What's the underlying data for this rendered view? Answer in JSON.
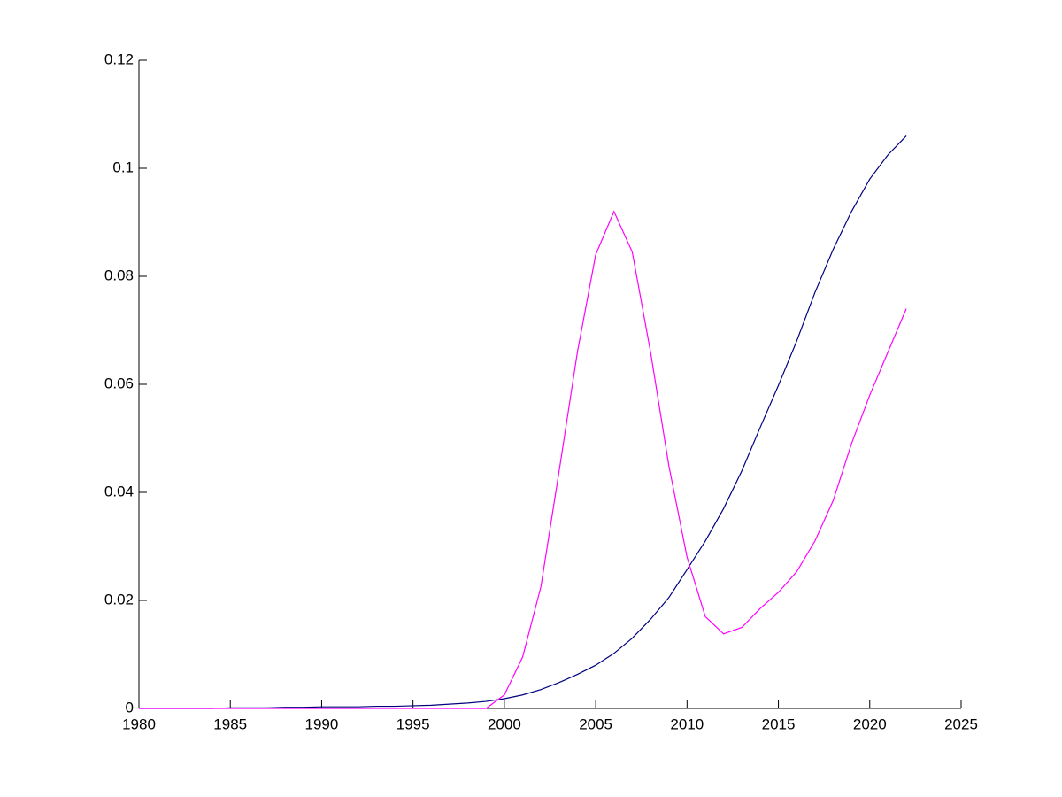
{
  "chart_data": {
    "type": "line",
    "x": [
      1980,
      1981,
      1982,
      1983,
      1984,
      1985,
      1986,
      1987,
      1988,
      1989,
      1990,
      1991,
      1992,
      1993,
      1994,
      1995,
      1996,
      1997,
      1998,
      1999,
      2000,
      2001,
      2002,
      2003,
      2004,
      2005,
      2006,
      2007,
      2008,
      2009,
      2010,
      2011,
      2012,
      2013,
      2014,
      2015,
      2016,
      2017,
      2018,
      2019,
      2020,
      2021,
      2022
    ],
    "series": [
      {
        "color": "#00007f",
        "values": [
          0,
          0,
          0,
          0,
          0,
          0.0001,
          0.0001,
          0.0001,
          0.0002,
          0.0002,
          0.0003,
          0.0003,
          0.0003,
          0.0004,
          0.0004,
          0.0005,
          0.0006,
          0.0008,
          0.001,
          0.0013,
          0.0018,
          0.0025,
          0.0035,
          0.0048,
          0.0063,
          0.008,
          0.0102,
          0.013,
          0.0165,
          0.0205,
          0.0257,
          0.031,
          0.037,
          0.044,
          0.052,
          0.0598,
          0.068,
          0.077,
          0.085,
          0.092,
          0.098,
          0.1025,
          0.106
        ]
      },
      {
        "color": "#ff00ff",
        "values": [
          0,
          0,
          0,
          0,
          0,
          0,
          0,
          0,
          0,
          0,
          0,
          0,
          0,
          0,
          0,
          0,
          0,
          0,
          0,
          0,
          0.0025,
          0.0095,
          0.0225,
          0.044,
          0.066,
          0.084,
          0.092,
          0.0845,
          0.066,
          0.045,
          0.028,
          0.017,
          0.0138,
          0.015,
          0.0185,
          0.0215,
          0.0253,
          0.031,
          0.0385,
          0.049,
          0.058,
          0.066,
          0.074
        ]
      }
    ],
    "xlim": [
      1980,
      2025
    ],
    "xticks": [
      1980,
      1985,
      1990,
      1995,
      2000,
      2005,
      2010,
      2015,
      2020,
      2025
    ],
    "ylim": [
      0,
      0.12
    ],
    "yticks": [
      0,
      0.02,
      0.04,
      0.06,
      0.08,
      0.1,
      0.12
    ]
  }
}
